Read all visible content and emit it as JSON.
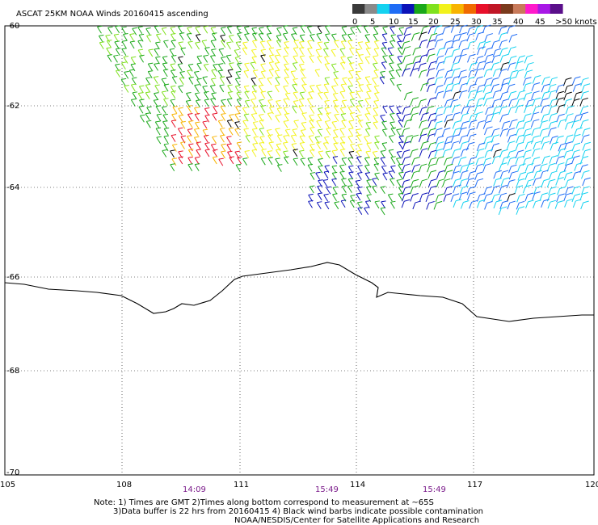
{
  "title": "ASCAT 25KM NOAA Winds 20160415 ascending",
  "legend": {
    "labels": [
      "0",
      "5",
      "10",
      "15",
      "20",
      "25",
      "30",
      "35",
      "40",
      "45",
      ">50 knots"
    ],
    "colors": [
      "#3a3a3a",
      "#8a8a8a",
      "#14d2f0",
      "#1f6cf5",
      "#0b12b8",
      "#1aa81a",
      "#7fe11e",
      "#f2f21c",
      "#f8b400",
      "#f06a00",
      "#e8102a",
      "#c01626",
      "#7a3a1c",
      "#c87a5a",
      "#ff1acb",
      "#a818e6",
      "#5a0f8a"
    ]
  },
  "lat_labels": [
    "-60",
    "-62",
    "-64",
    "-66",
    "-68",
    "-70"
  ],
  "lon_labels": [
    "105",
    "108",
    "111",
    "114",
    "117",
    "120"
  ],
  "pass_times": [
    "14:09",
    "15:49",
    "15:49"
  ],
  "notes": [
    "Note: 1) Times are GMT 2)Times along bottom correspond to measurement at ~65S",
    "3)Data buffer is 22 hrs from 20160415 4) Black wind barbs indicate possible contamination",
    "NOAA/NESDIS/Center for Satellite Applications and Research"
  ],
  "wind_speed_colors": {
    "light": "#14d2f0",
    "low": "#1f6cf5",
    "low_mid": "#0b12b8",
    "moderate": "#1aa81a",
    "moderate_high": "#7fe11e",
    "fresh": "#f2f21c",
    "strong": "#f8b400",
    "very_strong": "#e8102a",
    "contaminated": "#000000"
  }
}
